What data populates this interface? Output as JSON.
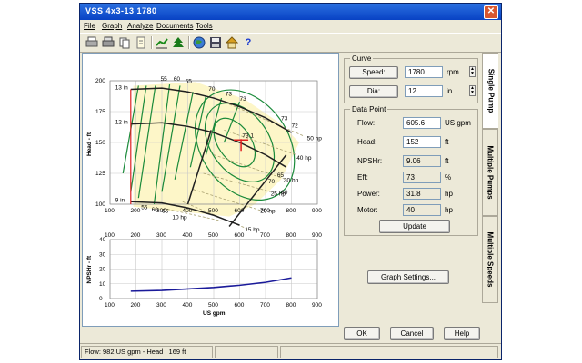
{
  "window": {
    "title": "VSS  4x3-13  1780",
    "close_glyph": "✕"
  },
  "menu": [
    {
      "label": "File"
    },
    {
      "label": "Graph"
    },
    {
      "label": "Analyze"
    },
    {
      "label": "Documents"
    },
    {
      "label": "Tools"
    }
  ],
  "toolbar": {
    "icons": [
      "print-icon",
      "print-preview-icon",
      "copy-icon",
      "notes-icon",
      "chart-icon",
      "tree-icon",
      "globe-icon",
      "save-icon",
      "home-icon",
      "help-icon"
    ],
    "help_glyph": "?"
  },
  "curve": {
    "caption": "Curve",
    "speed_button": "Speed:",
    "speed_value": "1780",
    "speed_unit": "rpm",
    "dia_button": "Dia:",
    "dia_value": "12",
    "dia_unit": "in"
  },
  "datapoint": {
    "caption": "Data Point",
    "flow_label": "Flow:",
    "flow_value": "605.6",
    "flow_unit": "US gpm",
    "head_label": "Head:",
    "head_value": "152",
    "head_unit": "ft",
    "npshr_label": "NPSHr:",
    "npshr_value": "9.06",
    "npshr_unit": "ft",
    "eff_label": "Eff:",
    "eff_value": "73",
    "eff_unit": "%",
    "power_label": "Power:",
    "power_value": "31.8",
    "power_unit": "hp",
    "motor_label": "Motor:",
    "motor_value": "40",
    "motor_unit": "hp",
    "update_button": "Update"
  },
  "graph_settings_button": "Graph Settings...",
  "tabs": [
    {
      "label": "Single Pump"
    },
    {
      "label": "Multiple Pumps"
    },
    {
      "label": "Multiple Speeds"
    }
  ],
  "buttons": {
    "ok": "OK",
    "cancel": "Cancel",
    "help": "Help"
  },
  "status": {
    "text": "Flow: 982 US gpm - Head : 169 ft"
  },
  "chart_data": [
    {
      "type": "line",
      "ylabel": "Head - ft",
      "xlim": [
        100,
        900
      ],
      "ylim": [
        100,
        200
      ],
      "x_ticks": [
        100,
        200,
        300,
        400,
        500,
        600,
        700,
        800,
        900
      ],
      "y_ticks": [
        100,
        125,
        150,
        175,
        200
      ],
      "series": [
        {
          "name": "13 in",
          "x": [
            180,
            300,
            400,
            500,
            600,
            700,
            800
          ],
          "y": [
            193,
            194,
            191,
            186,
            179,
            170,
            158
          ]
        },
        {
          "name": "12 in",
          "x": [
            180,
            300,
            400,
            500,
            600,
            700,
            780
          ],
          "y": [
            165,
            166,
            163,
            158,
            150,
            140,
            130
          ]
        },
        {
          "name": "9 in",
          "x": [
            180,
            300,
            400,
            500,
            600
          ],
          "y": [
            102,
            101,
            97,
            91,
            83
          ]
        }
      ],
      "efficiency_labels": [
        "55",
        "60",
        "65",
        "70",
        "73",
        "73.1",
        "73",
        "72",
        "70",
        "65",
        "60",
        "55"
      ],
      "power_labels": [
        "50 hp",
        "40 hp",
        "30 hp",
        "25 hp",
        "20 hp",
        "15 hp",
        "10 hp"
      ],
      "operating_point": {
        "x": 605.6,
        "y": 152
      },
      "grid": true
    },
    {
      "type": "line",
      "ylabel": "NPSHr - ft",
      "xlabel": "US gpm",
      "xlim": [
        100,
        900
      ],
      "ylim": [
        0,
        40
      ],
      "x_ticks": [
        100,
        200,
        300,
        400,
        500,
        600,
        700,
        800,
        900
      ],
      "y_ticks": [
        0,
        10,
        20,
        30,
        40
      ],
      "series": [
        {
          "x": [
            180,
            300,
            400,
            500,
            600,
            700,
            800
          ],
          "y": [
            5,
            5.5,
            6.5,
            7.5,
            9,
            11,
            14
          ]
        }
      ],
      "grid": true
    }
  ]
}
